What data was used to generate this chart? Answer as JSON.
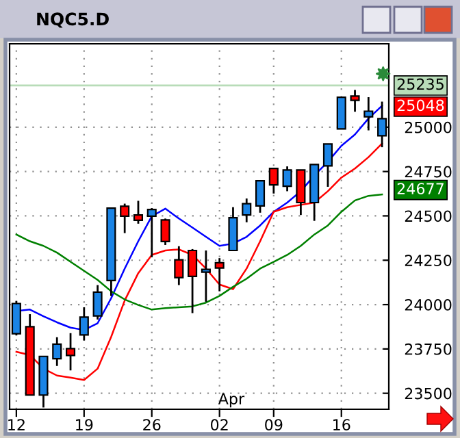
{
  "chart_data": {
    "type": "candlestick",
    "title": "NQC5.D",
    "categories": [
      "12",
      null,
      null,
      null,
      null,
      "19",
      null,
      null,
      null,
      null,
      "26",
      null,
      null,
      null,
      null,
      "02",
      null,
      null,
      null,
      "09",
      null,
      null,
      null,
      null,
      "16",
      null,
      null,
      null
    ],
    "ohlc": [
      [
        23836,
        24021,
        23826,
        24006
      ],
      [
        23875,
        23946,
        23490,
        23490
      ],
      [
        23490,
        23708,
        23420,
        23708
      ],
      [
        23695,
        23816,
        23654,
        23777
      ],
      [
        23752,
        23839,
        23629,
        23713
      ],
      [
        23829,
        23985,
        23798,
        23929
      ],
      [
        23936,
        24110,
        23916,
        24070
      ],
      [
        24136,
        24544,
        24049,
        24544
      ],
      [
        24554,
        24569,
        24403,
        24498
      ],
      [
        24505,
        24585,
        24456,
        24475
      ],
      [
        24498,
        24544,
        24267,
        24536
      ],
      [
        24477,
        24485,
        24336,
        24356
      ],
      [
        24252,
        24329,
        24110,
        24152
      ],
      [
        24305,
        24313,
        23952,
        24159
      ],
      [
        24183,
        24305,
        24016,
        24198
      ],
      [
        24236,
        24262,
        24075,
        24206
      ],
      [
        24305,
        24549,
        24305,
        24490
      ],
      [
        24505,
        24598,
        24464,
        24569
      ],
      [
        24556,
        24698,
        24518,
        24698
      ],
      [
        24767,
        24767,
        24626,
        24675
      ],
      [
        24667,
        24779,
        24639,
        24759
      ],
      [
        24759,
        24759,
        24505,
        24575
      ],
      [
        24575,
        24790,
        24472,
        24790
      ],
      [
        24782,
        24905,
        24664,
        24905
      ],
      [
        24990,
        25169,
        24990,
        25169
      ],
      [
        25175,
        25210,
        25087,
        25151
      ],
      [
        25059,
        25169,
        24982,
        25090
      ],
      [
        24952,
        25144,
        24887,
        25048
      ]
    ],
    "colors": [
      "#1a84e6",
      "#ff0000",
      "#1a84e6",
      "#1a84e6",
      "#ff0000",
      "#1a84e6",
      "#1a84e6",
      "#1a84e6",
      "#ff0000",
      "#ff0000",
      "#1a84e6",
      "#ff0000",
      "#ff0000",
      "#ff0000",
      "#1a84e6",
      "#ff0000",
      "#1a84e6",
      "#1a84e6",
      "#1a84e6",
      "#ff0000",
      "#1a84e6",
      "#ff0000",
      "#1a84e6",
      "#1a84e6",
      "#1a84e6",
      "#ff0000",
      "#1a84e6",
      "#1a84e6"
    ],
    "series": [
      {
        "type": "line",
        "color": "#0000ff",
        "values": [
          23964,
          23972,
          23934,
          23900,
          23870,
          23857,
          23895,
          24036,
          24203,
          24357,
          24498,
          24541,
          24485,
          24434,
          24382,
          24331,
          24344,
          24382,
          24446,
          24523,
          24575,
          24639,
          24728,
          24805,
          24895,
          24959,
          25049,
          25121
        ]
      },
      {
        "type": "line",
        "color": "#ff0000",
        "values": [
          23734,
          23716,
          23639,
          23600,
          23588,
          23575,
          23639,
          23818,
          24023,
          24177,
          24280,
          24305,
          24311,
          24280,
          24203,
          24113,
          24087,
          24203,
          24357,
          24523,
          24549,
          24562,
          24575,
          24639,
          24716,
          24767,
          24831,
          24908
        ]
      },
      {
        "type": "line",
        "color": "#008000",
        "values": [
          24395,
          24357,
          24331,
          24293,
          24241,
          24190,
          24139,
          24075,
          24029,
          23998,
          23972,
          23980,
          23985,
          23990,
          24011,
          24049,
          24100,
          24146,
          24203,
          24241,
          24280,
          24331,
          24395,
          24446,
          24523,
          24587,
          24613,
          24621
        ]
      }
    ],
    "ylim": [
      23410,
      25470
    ],
    "yticks": [
      23500,
      23750,
      24000,
      24250,
      24500,
      24750,
      25000
    ],
    "ref_lines": [
      {
        "axis": "y",
        "value": 25235,
        "label": "25235",
        "color": "#b8dcb8"
      }
    ],
    "annotations": [
      "25048",
      "24677",
      "Apr"
    ],
    "grid": true,
    "legend": false,
    "marker": "none",
    "line_style": "solid"
  }
}
